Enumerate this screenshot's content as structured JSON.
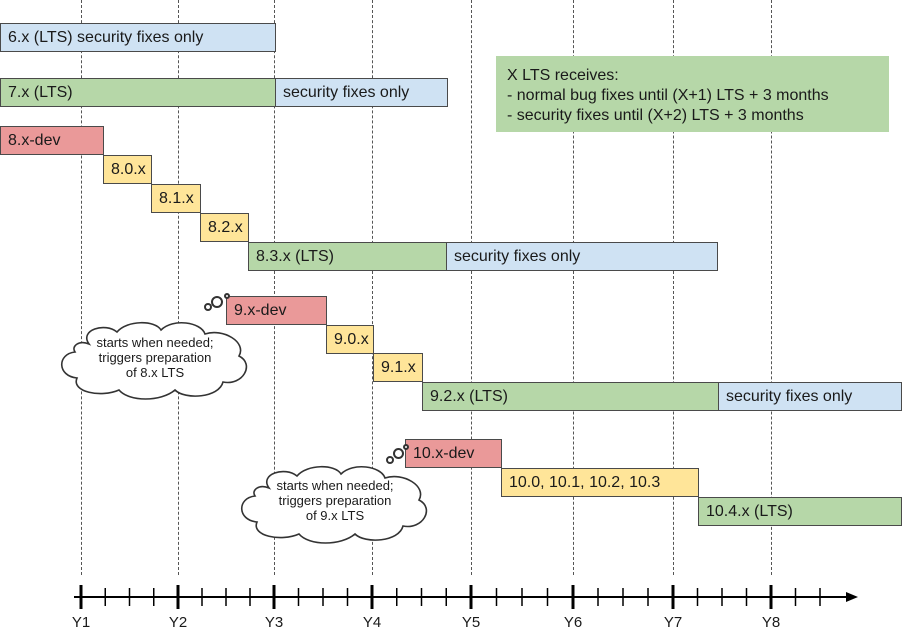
{
  "colors": {
    "security": "#cfe2f3",
    "lts": "#b6d7a8",
    "dev": "#ea9999",
    "minor": "#ffe599",
    "note": "#b6d7a8"
  },
  "bars": [
    {
      "id": "bar-6x-security",
      "label": "6.x (LTS) security fixes only",
      "kind": "security"
    },
    {
      "id": "bar-7x-lts",
      "label": "7.x (LTS)",
      "kind": "lts"
    },
    {
      "id": "bar-7x-security",
      "label": "security fixes only",
      "kind": "security"
    },
    {
      "id": "bar-8x-dev",
      "label": "8.x-dev",
      "kind": "dev"
    },
    {
      "id": "bar-8-0-x",
      "label": "8.0.x",
      "kind": "minor"
    },
    {
      "id": "bar-8-1-x",
      "label": "8.1.x",
      "kind": "minor"
    },
    {
      "id": "bar-8-2-x",
      "label": "8.2.x",
      "kind": "minor"
    },
    {
      "id": "bar-8-3-x-lts",
      "label": "8.3.x (LTS)",
      "kind": "lts"
    },
    {
      "id": "bar-8-3-x-security",
      "label": "security fixes only",
      "kind": "security"
    },
    {
      "id": "bar-9x-dev",
      "label": "9.x-dev",
      "kind": "dev"
    },
    {
      "id": "bar-9-0-x",
      "label": "9.0.x",
      "kind": "minor"
    },
    {
      "id": "bar-9-1-x",
      "label": "9.1.x",
      "kind": "minor"
    },
    {
      "id": "bar-9-2-x-lts",
      "label": "9.2.x (LTS)",
      "kind": "lts"
    },
    {
      "id": "bar-9-2-x-security",
      "label": "security fixes only",
      "kind": "security"
    },
    {
      "id": "bar-10x-dev",
      "label": "10.x-dev",
      "kind": "dev"
    },
    {
      "id": "bar-10-minors",
      "label": "10.0, 10.1, 10.2, 10.3",
      "kind": "minor"
    },
    {
      "id": "bar-10-4-x-lts",
      "label": "10.4.x (LTS)",
      "kind": "lts"
    }
  ],
  "note": {
    "lines": [
      "X LTS receives:",
      "- normal bug fixes until (X+1) LTS + 3 months",
      "- security fixes until (X+2) LTS + 3 months"
    ]
  },
  "clouds": [
    {
      "id": "cloud-9x",
      "lines": [
        "starts when needed;",
        "triggers preparation",
        "of 8.x LTS"
      ]
    },
    {
      "id": "cloud-10x",
      "lines": [
        "starts when needed;",
        "triggers preparation",
        "of 9.x LTS"
      ]
    }
  ],
  "timeline": {
    "labels": [
      "Y1",
      "Y2",
      "Y3",
      "Y4",
      "Y5",
      "Y6",
      "Y7",
      "Y8"
    ]
  }
}
